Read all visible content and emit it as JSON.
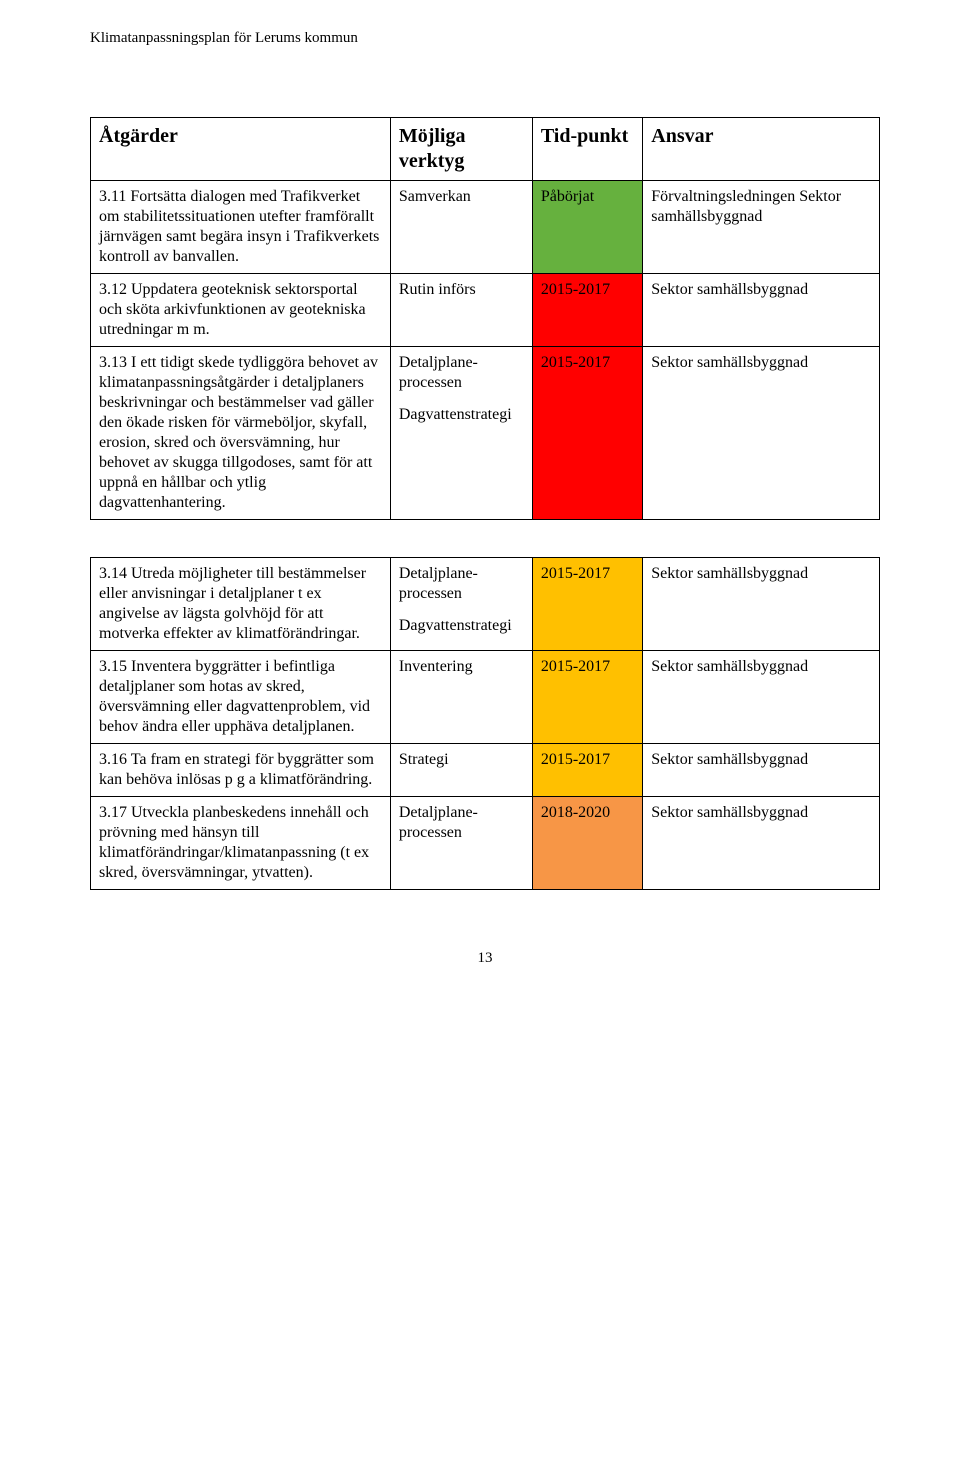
{
  "doc_header": "Klimatanpassningsplan för Lerums kommun",
  "page_number": "13",
  "colors": {
    "green": "#66b13e",
    "red": "#ff0000",
    "yellow": "#ffc000",
    "orange": "#f79646"
  },
  "table": {
    "headers": [
      "Åtgärder",
      "Möjliga verktyg",
      "Tid-punkt",
      "Ansvar"
    ],
    "rows": [
      {
        "c1": "3.11 Fortsätta dialogen med Trafikverket om stabilitetssituationen utefter framförallt järnvägen samt begära insyn i Trafikverkets kontroll av banvallen.",
        "c2": "Samverkan",
        "c3": "Påbörjat",
        "c3_color": "green",
        "c4": "Förvaltningsledningen Sektor samhällsbyggnad"
      },
      {
        "c1": "3.12 Uppdatera geoteknisk sektorsportal och sköta arkivfunktionen av geotekniska utredningar m m.",
        "c2": "Rutin införs",
        "c3": "2015-2017",
        "c3_color": "red",
        "c4": "Sektor samhällsbyggnad"
      },
      {
        "c1": "3.13 I ett tidigt skede tydliggöra behovet av klimatanpassningsåtgärder i detaljplaners beskrivningar och bestämmelser vad gäller den ökade risken för värmeböljor, skyfall, erosion, skred och översvämning, hur behovet av skugga tillgodoses, samt för att uppnå en hållbar och ytlig dagvattenhantering.",
        "c2": "Detaljplane-processen\nDagvattenstrategi",
        "c3": "2015-2017",
        "c3_color": "red",
        "c4": "Sektor samhällsbyggnad"
      },
      {
        "spacer": true
      },
      {
        "c1": "3.14 Utreda möjligheter till bestämmelser eller anvisningar i detaljplaner t ex angivelse av lägsta golvhöjd för att motverka effekter av klimatförändringar.",
        "c2": "Detaljplane-processen\nDagvattenstrategi",
        "c3": "2015-2017",
        "c3_color": "yellow",
        "c4": "Sektor samhällsbyggnad"
      },
      {
        "c1": "3.15 Inventera byggrätter i befintliga detaljplaner som hotas av skred, översvämning eller dagvattenproblem, vid behov ändra eller upphäva detaljplanen.",
        "c2": "Inventering",
        "c3": "2015-2017",
        "c3_color": "yellow",
        "c4": "Sektor samhällsbyggnad"
      },
      {
        "c1": "3.16 Ta fram en strategi för byggrätter som kan behöva inlösas p g a klimatförändring.",
        "c2": "Strategi",
        "c3": "2015-2017",
        "c3_color": "yellow",
        "c4": "Sektor samhällsbyggnad"
      },
      {
        "c1": "3.17 Utveckla planbeskedens innehåll och prövning med hänsyn till klimatförändringar/klimatanpassning (t ex skred, översvämningar, ytvatten).",
        "c2": "Detaljplane-processen",
        "c3": "2018-2020",
        "c3_color": "orange",
        "c4": "Sektor samhällsbyggnad"
      }
    ]
  }
}
